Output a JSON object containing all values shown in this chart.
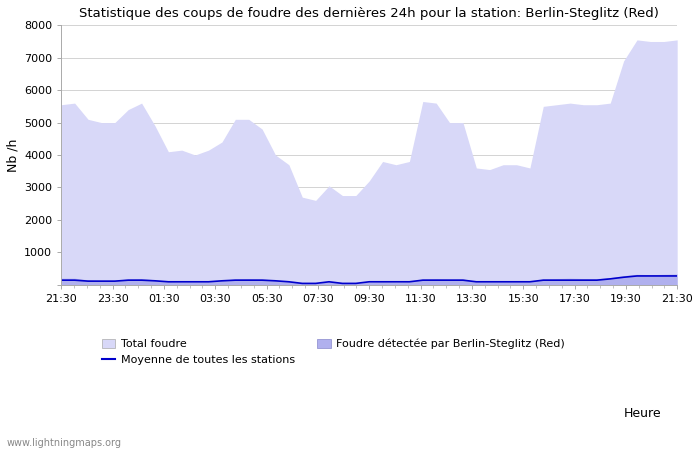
{
  "title": "Statistique des coups de foudre des dernières 24h pour la station: Berlin-Steglitz (Red)",
  "xlabel": "Heure",
  "ylabel": "Nb /h",
  "xlim_labels": [
    "21:30",
    "23:30",
    "01:30",
    "03:30",
    "05:30",
    "07:30",
    "09:30",
    "11:30",
    "13:30",
    "15:30",
    "17:30",
    "19:30",
    "21:30"
  ],
  "ylim": [
    0,
    8000
  ],
  "yticks": [
    0,
    1000,
    2000,
    3000,
    4000,
    5000,
    6000,
    7000,
    8000
  ],
  "watermark": "www.lightningmaps.org",
  "legend_items": [
    "Total foudre",
    "Moyenne de toutes les stations",
    "Foudre détectée par Berlin-Steglitz (Red)"
  ],
  "color_total": "#d8d8f8",
  "color_detected": "#b0b0ee",
  "color_moyenne": "#0000cc",
  "bg_color": "#ffffff",
  "total_foudre": [
    5550,
    5600,
    5100,
    5000,
    5000,
    5400,
    5600,
    4900,
    4100,
    4150,
    4000,
    4150,
    4400,
    5100,
    5100,
    4800,
    4000,
    3700,
    2700,
    2600,
    3050,
    2750,
    2750,
    3200,
    3800,
    3700,
    3800,
    5650,
    5600,
    5000,
    5000,
    3600,
    3550,
    3700,
    3700,
    3600,
    5500,
    5550,
    5600,
    5550,
    5550,
    5600,
    6900,
    7550,
    7500,
    7500,
    7550
  ],
  "detected_foudre": [
    200,
    200,
    150,
    130,
    130,
    180,
    190,
    150,
    100,
    90,
    90,
    90,
    130,
    180,
    190,
    180,
    140,
    100,
    50,
    40,
    90,
    50,
    40,
    80,
    90,
    80,
    90,
    180,
    190,
    180,
    180,
    90,
    90,
    90,
    90,
    90,
    180,
    190,
    200,
    190,
    190,
    220,
    280,
    320,
    310,
    320,
    330
  ],
  "moyenne": [
    140,
    140,
    110,
    110,
    110,
    140,
    140,
    120,
    90,
    90,
    90,
    90,
    120,
    140,
    140,
    140,
    120,
    90,
    40,
    40,
    90,
    40,
    40,
    90,
    90,
    90,
    90,
    140,
    140,
    140,
    140,
    90,
    90,
    90,
    90,
    90,
    140,
    140,
    140,
    140,
    140,
    180,
    230,
    270,
    270,
    270,
    270
  ]
}
